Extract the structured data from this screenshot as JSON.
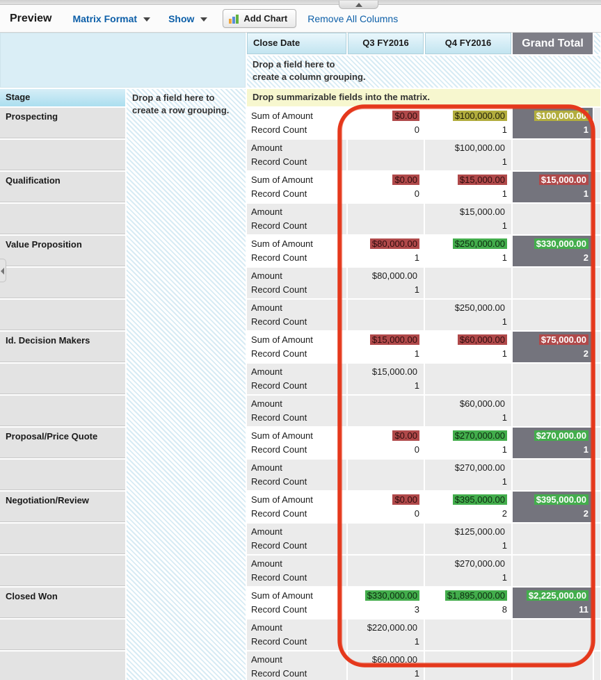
{
  "toolbar": {
    "title": "Preview",
    "format_menu_label": "Matrix Format",
    "show_menu_label": "Show",
    "add_chart_label": "Add Chart",
    "remove_all_columns_label": "Remove All Columns"
  },
  "drop_zones": {
    "column_line1": "Drop a field here to",
    "column_line2": "create a column grouping.",
    "row_line1": "Drop a field here to",
    "row_line2": "create a row grouping.",
    "matrix_bar": "Drop summarizable fields into the matrix."
  },
  "matrix": {
    "corner_label": "Close Date",
    "columns": [
      "Q3 FY2016",
      "Q4 FY2016"
    ],
    "grand_total_label": "Grand Total",
    "row_dimension_label": "Stage",
    "sum_label_line1": "Sum of Amount",
    "sum_label_line2": "Record Count",
    "detail_label_line1": "Amount",
    "detail_label_line2": "Record Count",
    "rows": [
      {
        "stage": "Prospecting",
        "type": "sum",
        "q3": {
          "v": "$0.00",
          "c": "0",
          "hl": "red"
        },
        "q4": {
          "v": "$100,000.00",
          "c": "1",
          "hl": "yellow"
        },
        "gt": {
          "v": "$100,000.00",
          "c": "1",
          "hl": "yellow"
        }
      },
      {
        "stage": "",
        "type": "detail",
        "q3": null,
        "q4": {
          "v": "$100,000.00",
          "c": "1"
        },
        "gt": null
      },
      {
        "stage": "Qualification",
        "type": "sum",
        "q3": {
          "v": "$0.00",
          "c": "0",
          "hl": "red"
        },
        "q4": {
          "v": "$15,000.00",
          "c": "1",
          "hl": "red"
        },
        "gt": {
          "v": "$15,000.00",
          "c": "1",
          "hl": "red"
        }
      },
      {
        "stage": "",
        "type": "detail",
        "q3": null,
        "q4": {
          "v": "$15,000.00",
          "c": "1"
        },
        "gt": null
      },
      {
        "stage": "Value Proposition",
        "type": "sum",
        "q3": {
          "v": "$80,000.00",
          "c": "1",
          "hl": "red"
        },
        "q4": {
          "v": "$250,000.00",
          "c": "1",
          "hl": "green"
        },
        "gt": {
          "v": "$330,000.00",
          "c": "2",
          "hl": "green"
        }
      },
      {
        "stage": "",
        "type": "detail",
        "q3": {
          "v": "$80,000.00",
          "c": "1"
        },
        "q4": null,
        "gt": null
      },
      {
        "stage": "",
        "type": "detail",
        "q3": null,
        "q4": {
          "v": "$250,000.00",
          "c": "1"
        },
        "gt": null
      },
      {
        "stage": "Id. Decision Makers",
        "type": "sum",
        "q3": {
          "v": "$15,000.00",
          "c": "1",
          "hl": "red"
        },
        "q4": {
          "v": "$60,000.00",
          "c": "1",
          "hl": "red"
        },
        "gt": {
          "v": "$75,000.00",
          "c": "2",
          "hl": "red"
        }
      },
      {
        "stage": "",
        "type": "detail",
        "q3": {
          "v": "$15,000.00",
          "c": "1"
        },
        "q4": null,
        "gt": null
      },
      {
        "stage": "",
        "type": "detail",
        "q3": null,
        "q4": {
          "v": "$60,000.00",
          "c": "1"
        },
        "gt": null
      },
      {
        "stage": "Proposal/Price Quote",
        "type": "sum",
        "q3": {
          "v": "$0.00",
          "c": "0",
          "hl": "red"
        },
        "q4": {
          "v": "$270,000.00",
          "c": "1",
          "hl": "green"
        },
        "gt": {
          "v": "$270,000.00",
          "c": "1",
          "hl": "green"
        }
      },
      {
        "stage": "",
        "type": "detail",
        "q3": null,
        "q4": {
          "v": "$270,000.00",
          "c": "1"
        },
        "gt": null
      },
      {
        "stage": "Negotiation/Review",
        "type": "sum",
        "q3": {
          "v": "$0.00",
          "c": "0",
          "hl": "red"
        },
        "q4": {
          "v": "$395,000.00",
          "c": "2",
          "hl": "green"
        },
        "gt": {
          "v": "$395,000.00",
          "c": "2",
          "hl": "green"
        }
      },
      {
        "stage": "",
        "type": "detail",
        "q3": null,
        "q4": {
          "v": "$125,000.00",
          "c": "1"
        },
        "gt": null
      },
      {
        "stage": "",
        "type": "detail",
        "q3": null,
        "q4": {
          "v": "$270,000.00",
          "c": "1"
        },
        "gt": null
      },
      {
        "stage": "Closed Won",
        "type": "sum",
        "q3": {
          "v": "$330,000.00",
          "c": "3",
          "hl": "green"
        },
        "q4": {
          "v": "$1,895,000.00",
          "c": "8",
          "hl": "green"
        },
        "gt": {
          "v": "$2,225,000.00",
          "c": "11",
          "hl": "green"
        }
      },
      {
        "stage": "",
        "type": "detail",
        "q3": {
          "v": "$220,000.00",
          "c": "1"
        },
        "q4": null,
        "gt": null
      },
      {
        "stage": "",
        "type": "detail",
        "q3": {
          "v": "$60,000.00",
          "c": "1"
        },
        "q4": null,
        "gt": null
      }
    ]
  },
  "colors": {
    "link_blue": "#0d5fa8",
    "negative_red": "#b0494a",
    "warning_yellow": "#b2ad3e",
    "positive_green": "#43ad4c",
    "grand_total_gray": "#74747d",
    "header_blue": "#c2e4f0",
    "annotation_red": "#e5381c"
  }
}
